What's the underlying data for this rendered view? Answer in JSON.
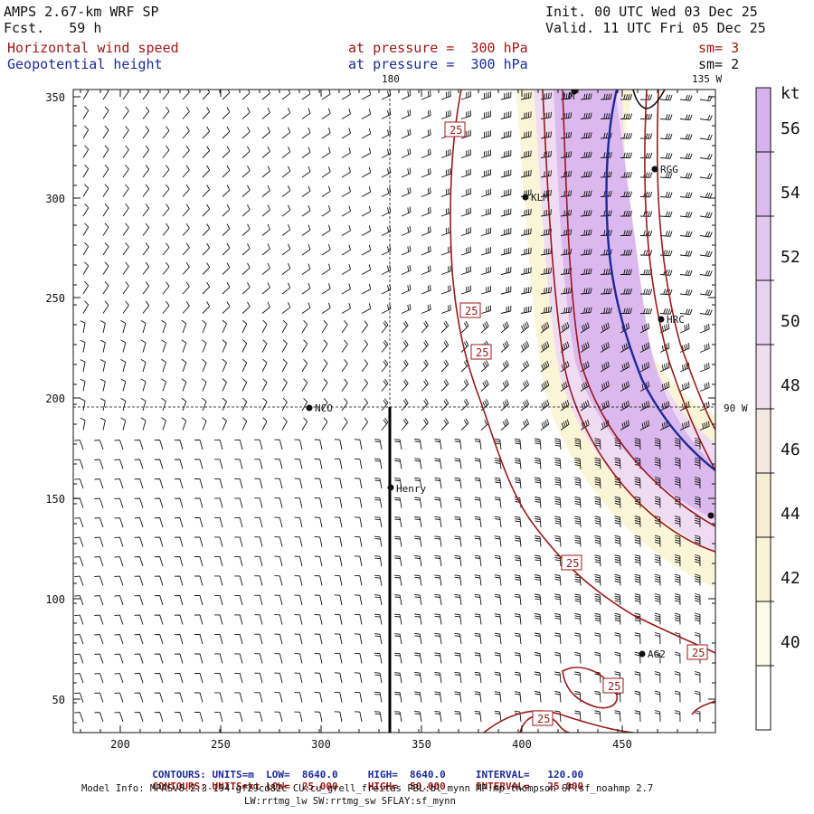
{
  "header": {
    "model": "AMPS 2.67-km WRF SP",
    "fcst": "Fcst.   59 h",
    "init": "Init. 00 UTC Wed 03 Dec 25",
    "valid": "Valid. 11 UTC Fri 05 Dec 25",
    "field1": "Horizontal wind speed",
    "field2": "Geopotential height",
    "level1": "at pressure =  300 hPa",
    "level2": "at pressure =  300 hPa",
    "sm1": "sm= 3",
    "sm2": "sm= 2"
  },
  "map": {
    "meridian_180": "180",
    "meridian_135w": "135 W",
    "parallel_90w": "90 W",
    "x_ticks": [
      "200",
      "250",
      "300",
      "350",
      "400",
      "450"
    ],
    "y_ticks": [
      "50",
      "100",
      "150",
      "200",
      "250",
      "300",
      "350"
    ],
    "stations": [
      {
        "name": "NCO"
      },
      {
        "name": "Henry"
      },
      {
        "name": "KLM"
      },
      {
        "name": "RGG"
      },
      {
        "name": "HRC"
      },
      {
        "name": "AG2"
      },
      {
        "name": "LM"
      },
      {
        "name": ""
      }
    ],
    "contour_label": "25"
  },
  "colorbar": {
    "unit": "kt",
    "labels": [
      "56",
      "54",
      "52",
      "50",
      "48",
      "46",
      "44",
      "42",
      "40"
    ],
    "colors": [
      "#d8b2ec",
      "#dcbcee",
      "#e2c8f1",
      "#e8d4f2",
      "#efdfee",
      "#f4e9e0",
      "#f6eed2",
      "#f9f4d4",
      "#fcfae8",
      "#ffffff"
    ]
  },
  "footer": {
    "c1_label": "CONTOURS:",
    "c1_units": "UNITS=m",
    "c1_low": "LOW=  8640.0",
    "c1_high": "HIGH=  8640.0",
    "c1_int": "INTERVAL=   120.00",
    "c2_label": "CONTOURS:",
    "c2_units": "UNITS=kt",
    "c2_low": "LOW=  25.000",
    "c2_high": "HIGH=  50.000",
    "c2_int": "INTERVAL=   25.000",
    "model_info": "Model Info: MPASv8.2.3-194-gf29cd82c CU:cu_grell_freitas PBL:bl_mynn MP:mp_thompson SF:sf_noahmp 2.7",
    "model_info2": "LW:rrtmg_lw SW:rrtmg_sw SFLAY:sf_mynn"
  }
}
